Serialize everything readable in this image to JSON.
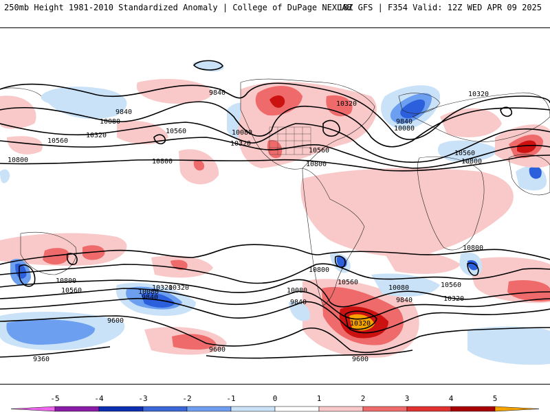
{
  "header": {
    "title": "250mb Height 1981-2010 Standardized Anomaly | College of DuPage NEXLAB",
    "run_info": "18Z GFS | F354 Valid: 12Z WED APR 09 2025"
  },
  "map": {
    "contour_labels": [
      "9840",
      "9840",
      "10080",
      "10560",
      "10320",
      "10800",
      "10080",
      "10320",
      "10320",
      "10560",
      "10800",
      "9840",
      "10080",
      "10560",
      "10800",
      "10320",
      "10800",
      "10800",
      "10560",
      "10320",
      "10560",
      "10800",
      "10080",
      "9840",
      "9600",
      "9360",
      "10080",
      "9840",
      "9600",
      "10320",
      "9600",
      "10800",
      "10560",
      "10080",
      "9840",
      "10560",
      "10320"
    ],
    "colors": {
      "neg_light": "#c9e2f8",
      "neg_mid": "#6d9ff0",
      "neg_strong": "#2c5fdc",
      "pos_light": "#f9c8c8",
      "pos_mid": "#ef6b6b",
      "pos_strong": "#cc1111",
      "pos_extreme": "#f5a300"
    }
  },
  "colorbar": {
    "ticks": [
      "-5",
      "-4",
      "-3",
      "-2",
      "-1",
      "0",
      "1",
      "2",
      "3",
      "4",
      "5"
    ],
    "colors": [
      "#ee66ee",
      "#8a1aa8",
      "#0b2fb0",
      "#3a66d8",
      "#6f9ef0",
      "#c9e2f8",
      "#ffffff",
      "#f9c8c8",
      "#ef6b6b",
      "#e13030",
      "#a80000",
      "#f5a300"
    ]
  }
}
